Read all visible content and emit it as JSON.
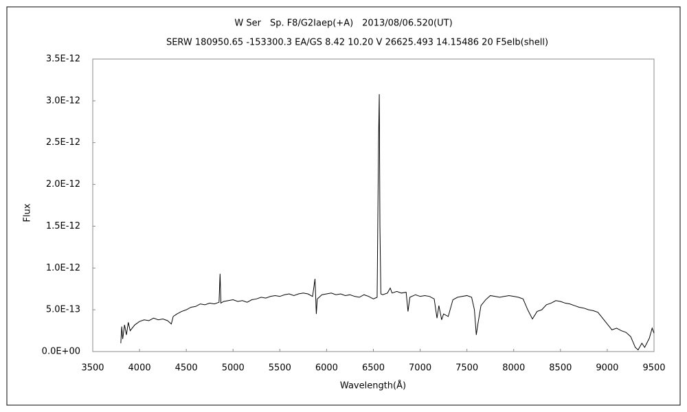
{
  "chart_data": {
    "type": "line",
    "title": "W Ser　Sp. F8/G2Iaep(+A)　2013/08/06.520(UT)",
    "subtitle": "SERW 180950.65 -153300.3 EA/GS 8.42 10.20 V 26625.493 14.15486 20 F5eIb(shell)",
    "xlabel": "Wavelength(Å)",
    "ylabel": "Flux",
    "xlim": [
      3500,
      9500
    ],
    "xticks": [
      3500,
      4000,
      4500,
      5000,
      5500,
      6000,
      6500,
      7000,
      7500,
      8000,
      8500,
      9000,
      9500
    ],
    "ylim": [
      0,
      3.5e-12
    ],
    "yticks": [
      {
        "value": 0,
        "label": "0.0E+00"
      },
      {
        "value": 5e-13,
        "label": "5.0E-13"
      },
      {
        "value": 1e-12,
        "label": "1.0E-12"
      },
      {
        "value": 1.5e-12,
        "label": "1.5E-12"
      },
      {
        "value": 2e-12,
        "label": "2.0E-12"
      },
      {
        "value": 2.5e-12,
        "label": "2.5E-12"
      },
      {
        "value": 3e-12,
        "label": "3.0E-12"
      },
      {
        "value": 3.5e-12,
        "label": "3.5E-12"
      }
    ],
    "grid": false,
    "color": "#000000",
    "x": [
      3800,
      3810,
      3820,
      3840,
      3860,
      3880,
      3900,
      3950,
      4000,
      4050,
      4100,
      4150,
      4200,
      4250,
      4300,
      4340,
      4360,
      4400,
      4450,
      4500,
      4550,
      4600,
      4650,
      4700,
      4750,
      4800,
      4850,
      4861,
      4870,
      4900,
      4950,
      5000,
      5050,
      5100,
      5150,
      5200,
      5250,
      5300,
      5350,
      5400,
      5450,
      5500,
      5550,
      5600,
      5650,
      5700,
      5750,
      5800,
      5850,
      5876,
      5890,
      5900,
      5950,
      6000,
      6050,
      6100,
      6150,
      6200,
      6250,
      6300,
      6350,
      6400,
      6450,
      6500,
      6540,
      6555,
      6563,
      6570,
      6580,
      6600,
      6650,
      6680,
      6700,
      6750,
      6800,
      6850,
      6870,
      6890,
      6950,
      7000,
      7050,
      7100,
      7150,
      7180,
      7200,
      7230,
      7250,
      7300,
      7350,
      7400,
      7450,
      7500,
      7550,
      7580,
      7600,
      7620,
      7650,
      7700,
      7750,
      7800,
      7850,
      7900,
      7950,
      8000,
      8050,
      8100,
      8150,
      8200,
      8250,
      8300,
      8350,
      8400,
      8450,
      8500,
      8550,
      8600,
      8650,
      8700,
      8750,
      8800,
      8850,
      8900,
      8950,
      9000,
      9050,
      9100,
      9150,
      9200,
      9250,
      9300,
      9330,
      9370,
      9400,
      9450,
      9480,
      9500
    ],
    "values": [
      1e-13,
      3e-13,
      1.5e-13,
      3.2e-13,
      2e-13,
      3.5e-13,
      2.5e-13,
      3.2e-13,
      3.6e-13,
      3.8e-13,
      3.7e-13,
      4e-13,
      3.8e-13,
      3.9e-13,
      3.7e-13,
      3.3e-13,
      4.2e-13,
      4.5e-13,
      4.8e-13,
      5e-13,
      5.3e-13,
      5.4e-13,
      5.7e-13,
      5.6e-13,
      5.8e-13,
      5.7e-13,
      5.9e-13,
      9.3e-13,
      5.8e-13,
      6e-13,
      6.1e-13,
      6.2e-13,
      6e-13,
      6.1e-13,
      5.9e-13,
      6.2e-13,
      6.3e-13,
      6.5e-13,
      6.4e-13,
      6.6e-13,
      6.7e-13,
      6.6e-13,
      6.8e-13,
      6.9e-13,
      6.7e-13,
      6.9e-13,
      7e-13,
      6.9e-13,
      6.6e-13,
      8.7e-13,
      4.5e-13,
      6.3e-13,
      6.8e-13,
      6.9e-13,
      7e-13,
      6.8e-13,
      6.9e-13,
      6.7e-13,
      6.8e-13,
      6.6e-13,
      6.5e-13,
      6.8e-13,
      6.6e-13,
      6.3e-13,
      6.5e-13,
      2.5e-12,
      3.08e-12,
      1.5e-12,
      6.9e-13,
      6.8e-13,
      7e-13,
      7.6e-13,
      7e-13,
      7.2e-13,
      7e-13,
      7.1e-13,
      4.8e-13,
      6.5e-13,
      6.8e-13,
      6.6e-13,
      6.7e-13,
      6.6e-13,
      6.3e-13,
      4e-13,
      5.5e-13,
      3.8e-13,
      4.5e-13,
      4.2e-13,
      6.2e-13,
      6.5e-13,
      6.6e-13,
      6.7e-13,
      6.5e-13,
      5e-13,
      2e-13,
      3.5e-13,
      5.5e-13,
      6.2e-13,
      6.7e-13,
      6.6e-13,
      6.5e-13,
      6.6e-13,
      6.7e-13,
      6.6e-13,
      6.5e-13,
      6.3e-13,
      5e-13,
      3.9e-13,
      4.8e-13,
      5e-13,
      5.6e-13,
      5.8e-13,
      6.1e-13,
      6e-13,
      5.8e-13,
      5.7e-13,
      5.5e-13,
      5.3e-13,
      5.2e-13,
      5e-13,
      4.9e-13,
      4.7e-13,
      4e-13,
      3.3e-13,
      2.6e-13,
      2.8e-13,
      2.5e-13,
      2.3e-13,
      1.8e-13,
      5e-14,
      2e-14,
      1e-13,
      5e-14,
      1.6e-13,
      2.8e-13,
      2.2e-13
    ]
  }
}
